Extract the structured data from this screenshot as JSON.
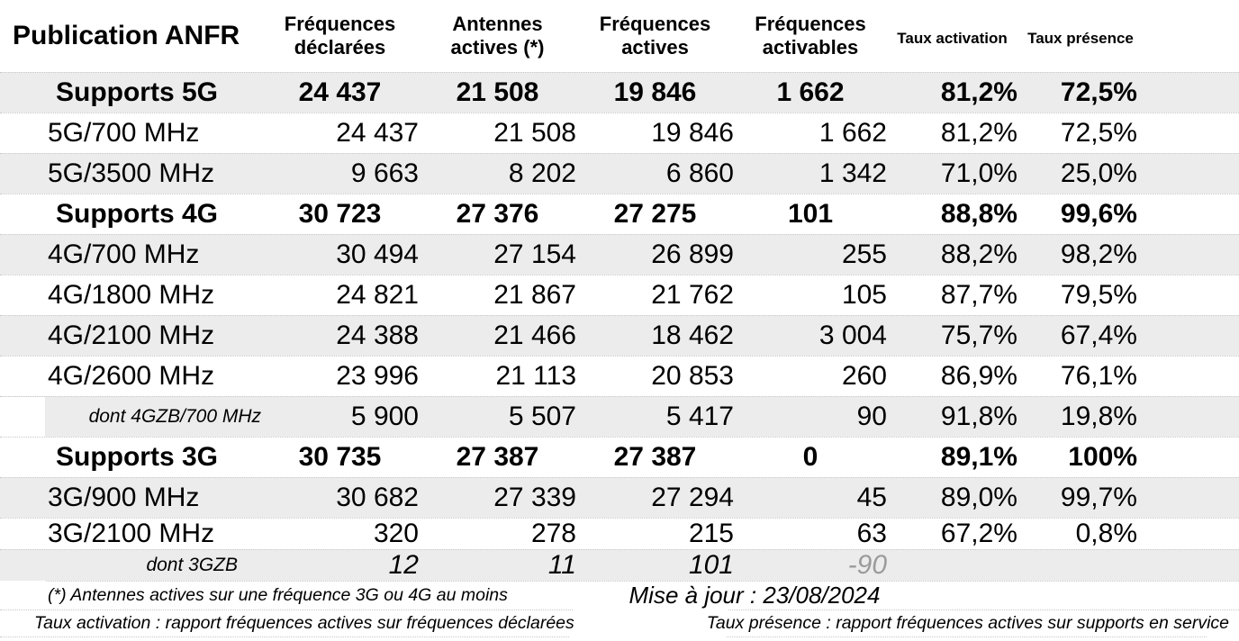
{
  "chart_data": {
    "type": "table",
    "title": "Publication ANFR",
    "columns": [
      "Fréquences déclarées",
      "Antennes actives (*)",
      "Fréquences actives",
      "Fréquences activables",
      "Taux activation",
      "Taux présence"
    ],
    "rows": [
      {
        "label": "Supports 5G",
        "kind": "section",
        "shaded": true,
        "values": [
          "24 437",
          "21 508",
          "19 846",
          "1 662",
          "81,2%",
          "72,5%"
        ]
      },
      {
        "label": "5G/700 MHz",
        "kind": "detail",
        "shaded": false,
        "values": [
          "24 437",
          "21 508",
          "19 846",
          "1 662",
          "81,2%",
          "72,5%"
        ]
      },
      {
        "label": "5G/3500 MHz",
        "kind": "detail",
        "shaded": true,
        "values": [
          "9 663",
          "8 202",
          "6 860",
          "1 342",
          "71,0%",
          "25,0%"
        ]
      },
      {
        "label": "Supports 4G",
        "kind": "section",
        "shaded": false,
        "values": [
          "30 723",
          "27 376",
          "27 275",
          "101",
          "88,8%",
          "99,6%"
        ]
      },
      {
        "label": "4G/700 MHz",
        "kind": "detail",
        "shaded": true,
        "values": [
          "30 494",
          "27 154",
          "26 899",
          "255",
          "88,2%",
          "98,2%"
        ]
      },
      {
        "label": "4G/1800 MHz",
        "kind": "detail",
        "shaded": false,
        "values": [
          "24 821",
          "21 867",
          "21 762",
          "105",
          "87,7%",
          "79,5%"
        ]
      },
      {
        "label": "4G/2100 MHz",
        "kind": "detail",
        "shaded": true,
        "values": [
          "24 388",
          "21 466",
          "18 462",
          "3 004",
          "75,7%",
          "67,4%"
        ]
      },
      {
        "label": "4G/2600 MHz",
        "kind": "detail",
        "shaded": false,
        "values": [
          "23 996",
          "21 113",
          "20 853",
          "260",
          "86,9%",
          "76,1%"
        ]
      },
      {
        "label": "dont 4GZB/700 MHz",
        "kind": "subdetail",
        "shaded": true,
        "notch": true,
        "values": [
          "5 900",
          "5 507",
          "5 417",
          "90",
          "91,8%",
          "19,8%"
        ]
      },
      {
        "label": "Supports 3G",
        "kind": "section",
        "shaded": false,
        "values": [
          "30 735",
          "27 387",
          "27 387",
          "0",
          "89,1%",
          "100%"
        ]
      },
      {
        "label": "3G/900 MHz",
        "kind": "detail",
        "shaded": true,
        "values": [
          "30 682",
          "27 339",
          "27 294",
          "45",
          "89,0%",
          "99,7%"
        ]
      },
      {
        "label": "3G/2100 MHz",
        "kind": "detail",
        "shaded": false,
        "short": true,
        "values": [
          "320",
          "278",
          "215",
          "63",
          "67,2%",
          "0,8%"
        ]
      },
      {
        "label": "dont 3GZB",
        "kind": "subdetail2",
        "shaded": true,
        "short": true,
        "italic_values": true,
        "muted_cols": [
          3
        ],
        "values": [
          "12",
          "11",
          "101",
          "-90",
          "",
          ""
        ]
      }
    ]
  },
  "footer": {
    "note_antennes": "(*) Antennes actives sur une fréquence 3G ou 4G au moins",
    "update": "Mise à jour : 23/08/2024",
    "note_taux_activation": "Taux activation : rapport fréquences actives sur fréquences déclarées",
    "note_taux_presence": "Taux présence : rapport fréquences actives sur supports en service"
  },
  "colors": {
    "row_stripe": "#ececec",
    "border": "#c8c8c8",
    "muted_value": "#9b9b9b"
  }
}
